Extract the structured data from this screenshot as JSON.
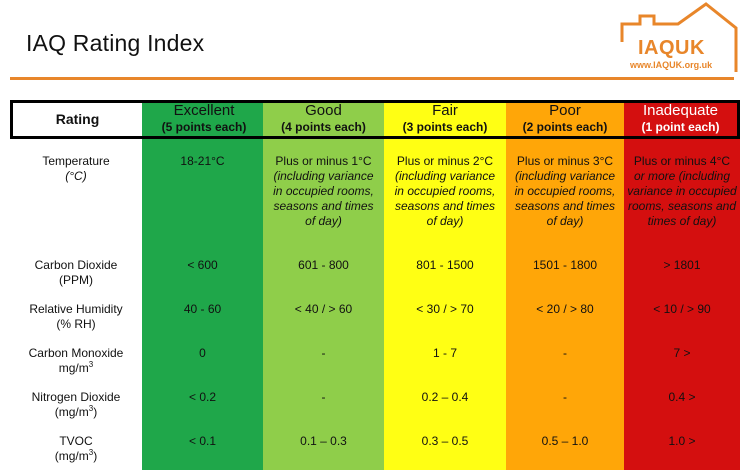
{
  "title": "IAQ Rating Index",
  "logo": {
    "text": "IAQUK",
    "url": "www.IAQUK.org.uk"
  },
  "header": {
    "rating_label": "Rating",
    "columns": [
      {
        "name": "Excellent",
        "points": "(5 points each)"
      },
      {
        "name": "Good",
        "points": "(4 points each)"
      },
      {
        "name": "Fair",
        "points": "(3 points each)"
      },
      {
        "name": "Poor",
        "points": "(2 points each)"
      },
      {
        "name": "Inadequate",
        "points": "(1 point each)"
      }
    ]
  },
  "colors": {
    "excellent": "#1fa74a",
    "good": "#8fce4a",
    "fair": "#ffff14",
    "poor": "#ffa608",
    "inadequate": "#d40f0f",
    "accent": "#e8862a"
  },
  "rows": [
    {
      "param": "Temperature",
      "unit": "(°C)",
      "excellent": "18-21°C",
      "good": "Plus or minus 1°C",
      "good_note": "(including variance in occupied rooms, seasons and times of day)",
      "fair": "Plus or minus 2°C",
      "fair_note": "(including variance in occupied rooms, seasons and times of day)",
      "poor": "Plus or minus 3°C",
      "poor_note": "(including variance in occupied rooms, seasons and times of day)",
      "inadequate": "Plus or minus 4°C",
      "inadequate_note": "or more (including variance in occupied rooms, seasons and times of day)"
    },
    {
      "param": "Carbon Dioxide",
      "unit": "(PPM)",
      "excellent": "< 600",
      "good": "601 - 800",
      "fair": "801 - 1500",
      "poor": "1501 - 1800",
      "inadequate": "> 1801"
    },
    {
      "param": "Relative Humidity",
      "unit": "(% RH)",
      "excellent": "40 - 60",
      "good": "< 40 /  > 60",
      "fair": "< 30 /  > 70",
      "poor": "< 20 /  > 80",
      "inadequate": "< 10 /  > 90"
    },
    {
      "param": "Carbon Monoxide",
      "unit": "mg/m",
      "excellent": "0",
      "good": "-",
      "fair": "1 - 7",
      "poor": "-",
      "inadequate": "7 >"
    },
    {
      "param": "Nitrogen Dioxide",
      "unit": "(mg/m",
      "unit_end": ")",
      "excellent": "< 0.2",
      "good": "-",
      "fair": "0.2 – 0.4",
      "poor": "-",
      "inadequate": "0.4 >"
    },
    {
      "param": "TVOC",
      "unit": "(mg/m",
      "unit_end": ")",
      "excellent": "< 0.1",
      "good": "0.1 – 0.3",
      "fair": "0.3 – 0.5",
      "poor": "0.5 – 1.0",
      "inadequate": "1.0 >"
    }
  ],
  "cube": "3"
}
